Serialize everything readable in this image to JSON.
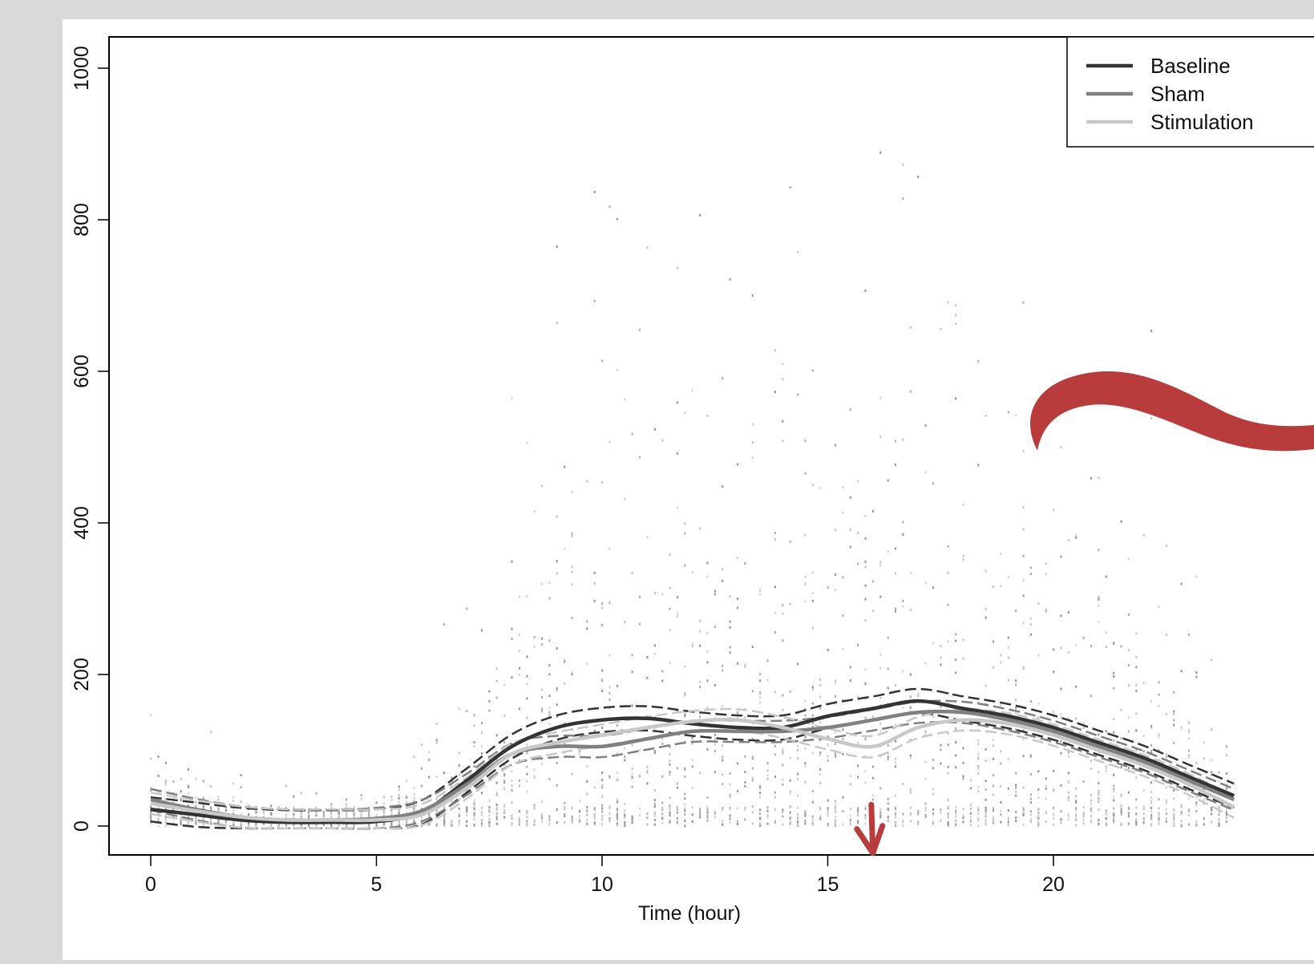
{
  "chart_data": {
    "type": "line",
    "title": "",
    "xlabel": "Time (hour)",
    "ylabel": "",
    "xlim": [
      -1,
      24.5
    ],
    "ylim": [
      -60,
      1040
    ],
    "xticks": [
      0,
      5,
      10,
      15,
      20
    ],
    "yticks": [
      0,
      200,
      400,
      600,
      800,
      1000
    ],
    "grid": false,
    "legend": {
      "placement": "top-right",
      "entries": [
        "Baseline",
        "Sham",
        "Stimulation"
      ]
    },
    "series": [
      {
        "name": "Baseline",
        "color": "#333333",
        "x": [
          0,
          1,
          2,
          3,
          4,
          5,
          6,
          7,
          8,
          9,
          10,
          11,
          12,
          13,
          14,
          15,
          16,
          17,
          18,
          19,
          20,
          21,
          22,
          23,
          24
        ],
        "y": [
          22,
          15,
          8,
          5,
          5,
          6,
          18,
          60,
          105,
          130,
          140,
          142,
          135,
          130,
          130,
          145,
          155,
          165,
          155,
          145,
          130,
          110,
          90,
          65,
          40
        ]
      },
      {
        "name": "Sham",
        "color": "#808080",
        "x": [
          0,
          1,
          2,
          3,
          4,
          5,
          6,
          7,
          8,
          9,
          10,
          11,
          12,
          13,
          14,
          15,
          16,
          17,
          18,
          19,
          20,
          21,
          22,
          23,
          24
        ],
        "y": [
          35,
          22,
          12,
          8,
          8,
          10,
          20,
          55,
          95,
          105,
          105,
          115,
          125,
          125,
          125,
          130,
          140,
          150,
          150,
          140,
          125,
          105,
          85,
          60,
          35
        ]
      },
      {
        "name": "Stimulation",
        "color": "#c8c8c8",
        "x": [
          0,
          1,
          2,
          3,
          4,
          5,
          6,
          7,
          8,
          9,
          10,
          11,
          12,
          13,
          14,
          15,
          16,
          17,
          18,
          19,
          20,
          21,
          22,
          23,
          24
        ],
        "y": [
          30,
          20,
          12,
          8,
          8,
          8,
          15,
          50,
          95,
          110,
          120,
          130,
          138,
          140,
          130,
          115,
          105,
          130,
          140,
          135,
          120,
          100,
          80,
          55,
          25
        ]
      }
    ],
    "annotations": [
      {
        "type": "arrow",
        "color": "#b83c3c",
        "x": 16,
        "y_from": 150,
        "y_to": -25
      },
      {
        "type": "tilde",
        "color": "#b83c3c",
        "x": 22.6,
        "y": 540
      }
    ]
  }
}
